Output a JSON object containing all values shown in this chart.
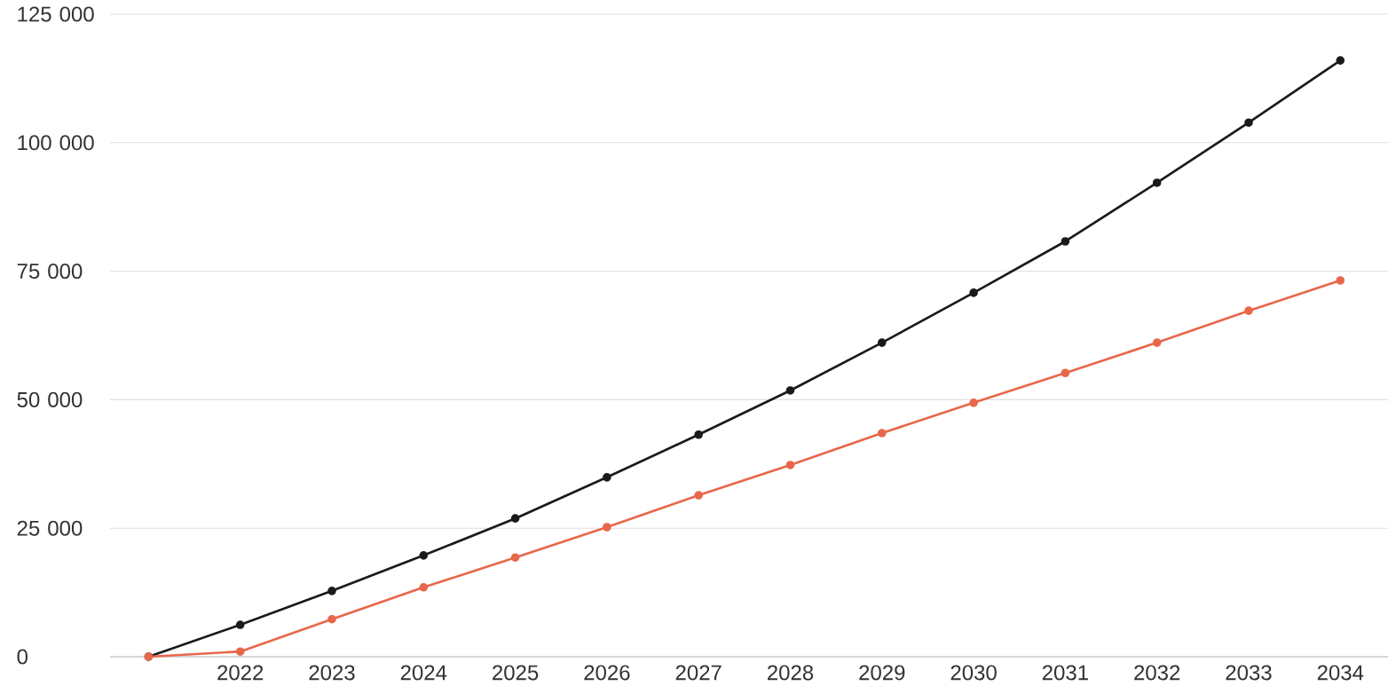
{
  "chart_data": {
    "type": "line",
    "categories": [
      null,
      "2022",
      "2023",
      "2024",
      "2025",
      "2026",
      "2027",
      "2028",
      "2029",
      "2030",
      "2031",
      "2032",
      "2033",
      "2034"
    ],
    "series": [
      {
        "color": "#1a1a1a",
        "values": [
          0,
          6200,
          12800,
          19700,
          26900,
          34900,
          43200,
          51800,
          61100,
          70800,
          80800,
          92200,
          103900,
          116000
        ]
      },
      {
        "color": "#e8674a",
        "values": [
          0,
          1000,
          7300,
          13500,
          19300,
          25200,
          31400,
          37300,
          43500,
          49400,
          55200,
          61100,
          67300,
          73200
        ]
      }
    ],
    "ylim": [
      0,
      125000
    ],
    "yticks": [
      0,
      {
        "value": 25000,
        "label": "25 000"
      },
      {
        "value": 50000,
        "label": "50 000"
      },
      {
        "value": 75000,
        "label": "75 000"
      },
      {
        "value": 100000,
        "label": "100 000"
      },
      {
        "value": 125000,
        "label": "125 000"
      }
    ],
    "grid": "y",
    "marker": "circle",
    "line_style": "solid"
  }
}
